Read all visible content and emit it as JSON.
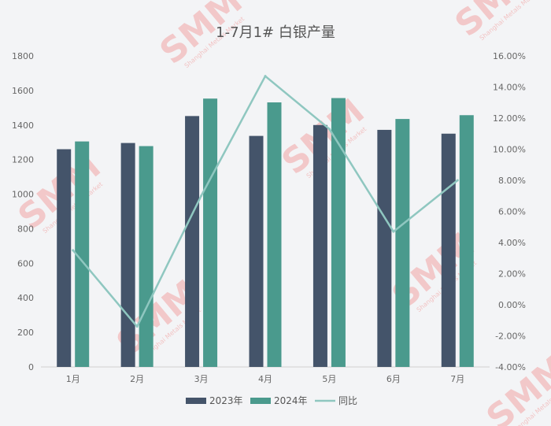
{
  "chart_data": {
    "type": "bar",
    "title": "1-7月1# 白银产量",
    "categories": [
      "1月",
      "2月",
      "3月",
      "4月",
      "5月",
      "6月",
      "7月"
    ],
    "series": [
      {
        "name": "2023年",
        "kind": "bar",
        "axis": "left",
        "color": "#44546a",
        "values": [
          1260,
          1296,
          1452,
          1337,
          1400,
          1372,
          1350
        ]
      },
      {
        "name": "2024年",
        "kind": "bar",
        "axis": "left",
        "color": "#4a9a8d",
        "values": [
          1305,
          1278,
          1553,
          1531,
          1556,
          1435,
          1457
        ]
      },
      {
        "name": "同比",
        "kind": "line",
        "axis": "right",
        "color": "#8fc7c0",
        "values": [
          0.035,
          -0.014,
          0.07,
          0.147,
          0.113,
          0.047,
          0.08
        ]
      }
    ],
    "y_left": {
      "min": 0,
      "max": 1800,
      "ticks": [
        "0",
        "200",
        "400",
        "600",
        "800",
        "1000",
        "1200",
        "1400",
        "1600",
        "1800"
      ]
    },
    "y_right": {
      "min": -0.04,
      "max": 0.16,
      "ticks": [
        "-4.00%",
        "-2.00%",
        "0.00%",
        "2.00%",
        "4.00%",
        "6.00%",
        "8.00%",
        "10.00%",
        "12.00%",
        "14.00%",
        "16.00%"
      ]
    },
    "grid": false,
    "legend_position": "bottom"
  },
  "watermark": {
    "text": "SMM",
    "subtext": "Shanghai Metals Market"
  }
}
